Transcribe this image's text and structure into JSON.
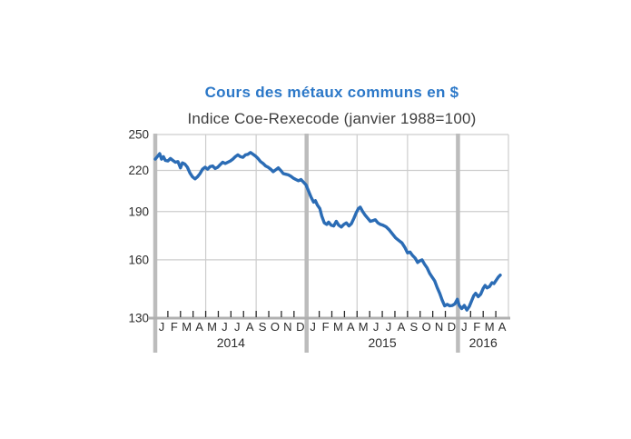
{
  "chart_data": {
    "type": "line",
    "title": "Cours des métaux communs en $",
    "subtitle": "Indice Coe-Rexecode (janvier 1988=100)",
    "y_axis": {
      "scale": "log",
      "min": 130,
      "max": 250,
      "ticks": [
        250,
        220,
        190,
        160,
        130
      ]
    },
    "x_axis": {
      "months_total": 28,
      "month_letters": [
        "J",
        "F",
        "M",
        "A",
        "M",
        "J",
        "J",
        "A",
        "S",
        "O",
        "N",
        "D",
        "J",
        "F",
        "M",
        "A",
        "M",
        "J",
        "J",
        "A",
        "S",
        "O",
        "N",
        "D",
        "J",
        "F",
        "M",
        "A"
      ],
      "year_groups": [
        {
          "label": "2014",
          "from_month": 0,
          "to_month": 12
        },
        {
          "label": "2015",
          "from_month": 12,
          "to_month": 24
        },
        {
          "label": "2016",
          "from_month": 24,
          "to_month": 28
        }
      ],
      "year_separator_months": [
        0,
        12,
        24
      ],
      "minor_gridline_months": [
        4,
        8,
        16,
        20
      ]
    },
    "series": [
      {
        "name": "Indice Coe-Rexecode des métaux communs en $ (janvier 1988=100)",
        "x_unit": "mois depuis janvier 2014",
        "points": [
          [
            0,
            229
          ],
          [
            0.2,
            231.5
          ],
          [
            0.35,
            233.5
          ],
          [
            0.5,
            229
          ],
          [
            0.65,
            231
          ],
          [
            0.8,
            228
          ],
          [
            1.0,
            227.5
          ],
          [
            1.2,
            229.5
          ],
          [
            1.4,
            228
          ],
          [
            1.6,
            226.5
          ],
          [
            1.8,
            227
          ],
          [
            2.0,
            222
          ],
          [
            2.15,
            226
          ],
          [
            2.35,
            225
          ],
          [
            2.55,
            222.5
          ],
          [
            2.75,
            218
          ],
          [
            2.95,
            215
          ],
          [
            3.15,
            213.5
          ],
          [
            3.35,
            215
          ],
          [
            3.55,
            217.5
          ],
          [
            3.75,
            221
          ],
          [
            3.95,
            222.5
          ],
          [
            4.15,
            221
          ],
          [
            4.35,
            223
          ],
          [
            4.55,
            223.5
          ],
          [
            4.75,
            221.5
          ],
          [
            4.95,
            222.5
          ],
          [
            5.15,
            224.5
          ],
          [
            5.35,
            226.5
          ],
          [
            5.55,
            225.5
          ],
          [
            5.75,
            226.5
          ],
          [
            5.95,
            227.5
          ],
          [
            6.15,
            229
          ],
          [
            6.35,
            231
          ],
          [
            6.55,
            232.5
          ],
          [
            6.75,
            231
          ],
          [
            6.95,
            230.5
          ],
          [
            7.15,
            232.5
          ],
          [
            7.35,
            233
          ],
          [
            7.55,
            234.5
          ],
          [
            7.75,
            233
          ],
          [
            7.95,
            231.5
          ],
          [
            8.15,
            229.5
          ],
          [
            8.35,
            227
          ],
          [
            8.55,
            225.5
          ],
          [
            8.75,
            223.5
          ],
          [
            8.95,
            222.5
          ],
          [
            9.15,
            221
          ],
          [
            9.35,
            219
          ],
          [
            9.55,
            220.5
          ],
          [
            9.75,
            222
          ],
          [
            9.95,
            220
          ],
          [
            10.15,
            217.5
          ],
          [
            10.35,
            217
          ],
          [
            10.55,
            216.5
          ],
          [
            10.75,
            215.5
          ],
          [
            10.95,
            214
          ],
          [
            11.15,
            213
          ],
          [
            11.35,
            212
          ],
          [
            11.55,
            213
          ],
          [
            11.75,
            211
          ],
          [
            11.95,
            209
          ],
          [
            12.15,
            204.5
          ],
          [
            12.35,
            200
          ],
          [
            12.55,
            196.5
          ],
          [
            12.7,
            197.5
          ],
          [
            12.85,
            194.5
          ],
          [
            13.05,
            192
          ],
          [
            13.2,
            187
          ],
          [
            13.4,
            182.5
          ],
          [
            13.6,
            181.5
          ],
          [
            13.75,
            183
          ],
          [
            13.95,
            181
          ],
          [
            14.15,
            180.5
          ],
          [
            14.35,
            183.5
          ],
          [
            14.55,
            181
          ],
          [
            14.75,
            179.8
          ],
          [
            14.95,
            181.5
          ],
          [
            15.15,
            182.5
          ],
          [
            15.35,
            180.5
          ],
          [
            15.55,
            182
          ],
          [
            15.75,
            185.5
          ],
          [
            15.95,
            189.5
          ],
          [
            16.1,
            192
          ],
          [
            16.25,
            193
          ],
          [
            16.45,
            190
          ],
          [
            16.65,
            187.5
          ],
          [
            16.85,
            185.5
          ],
          [
            17.05,
            183.5
          ],
          [
            17.25,
            184
          ],
          [
            17.45,
            184.5
          ],
          [
            17.65,
            182.5
          ],
          [
            17.85,
            181.5
          ],
          [
            18.05,
            181
          ],
          [
            18.3,
            180
          ],
          [
            18.55,
            178
          ],
          [
            18.8,
            175.5
          ],
          [
            19.05,
            173
          ],
          [
            19.3,
            171.5
          ],
          [
            19.55,
            170
          ],
          [
            19.8,
            167
          ],
          [
            20.0,
            164
          ],
          [
            20.2,
            164.5
          ],
          [
            20.4,
            162.5
          ],
          [
            20.6,
            161
          ],
          [
            20.8,
            158.5
          ],
          [
            21.0,
            159.5
          ],
          [
            21.15,
            160
          ],
          [
            21.35,
            157.5
          ],
          [
            21.55,
            155.5
          ],
          [
            21.75,
            152.5
          ],
          [
            21.95,
            150.5
          ],
          [
            22.15,
            148.5
          ],
          [
            22.35,
            145
          ],
          [
            22.55,
            142
          ],
          [
            22.75,
            138.5
          ],
          [
            22.95,
            135.8
          ],
          [
            23.15,
            136.5
          ],
          [
            23.35,
            135.8
          ],
          [
            23.55,
            136
          ],
          [
            23.75,
            136.8
          ],
          [
            23.95,
            139
          ],
          [
            24.1,
            136
          ],
          [
            24.3,
            134.5
          ],
          [
            24.5,
            136
          ],
          [
            24.7,
            133.8
          ],
          [
            24.9,
            135.5
          ],
          [
            25.1,
            138.5
          ],
          [
            25.25,
            140.8
          ],
          [
            25.4,
            142
          ],
          [
            25.6,
            140.3
          ],
          [
            25.8,
            141.5
          ],
          [
            26.0,
            144.5
          ],
          [
            26.15,
            146
          ],
          [
            26.3,
            144.8
          ],
          [
            26.5,
            145.5
          ],
          [
            26.7,
            147.5
          ],
          [
            26.85,
            147
          ],
          [
            27.0,
            148.5
          ],
          [
            27.2,
            150.5
          ],
          [
            27.35,
            151.5
          ]
        ]
      }
    ],
    "colors": {
      "line": "#2B6CB5",
      "title": "#2C78C8",
      "axis_text": "#2b2b2b",
      "grid": "#cdcdcd",
      "year_bar": "#bcbcbc",
      "bottom_axis": "#b0b0b0",
      "tick": "#2a2a2a"
    },
    "legend": "none",
    "grid": "on"
  }
}
